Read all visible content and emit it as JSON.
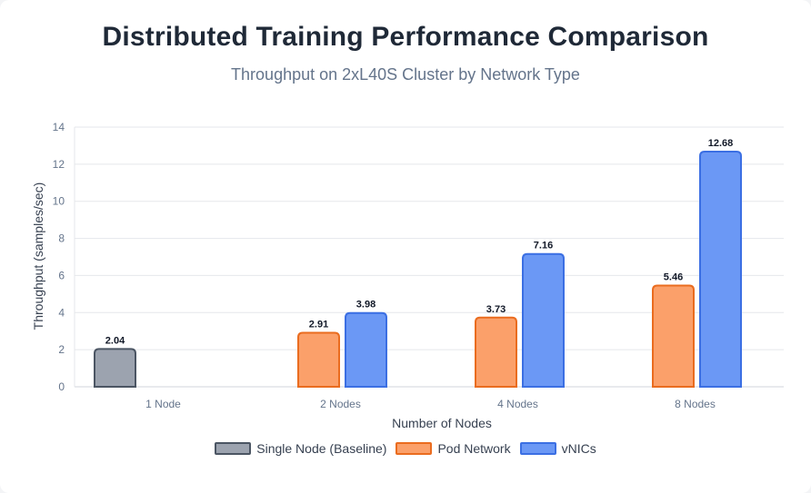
{
  "title": "Distributed Training Performance Comparison",
  "subtitle": "Throughput on 2xL40S Cluster by Network Type",
  "chart_data": {
    "type": "bar",
    "categories": [
      "1 Node",
      "2 Nodes",
      "4 Nodes",
      "8 Nodes"
    ],
    "series": [
      {
        "name": "Single Node (Baseline)",
        "values": [
          2.04,
          null,
          null,
          null
        ],
        "fill": "#9ca3af",
        "stroke": "#4b5563"
      },
      {
        "name": "Pod Network",
        "values": [
          null,
          2.91,
          3.73,
          5.46
        ],
        "fill": "#fba06a",
        "stroke": "#ea6c1f"
      },
      {
        "name": "vNICs",
        "values": [
          null,
          3.98,
          7.16,
          12.68
        ],
        "fill": "#6b98f5",
        "stroke": "#3b6fe3"
      }
    ],
    "xlabel": "Number of Nodes",
    "ylabel": "Throughput (samples/sec)",
    "ylim": [
      0,
      14
    ],
    "yticks": [
      0,
      2,
      4,
      6,
      8,
      10,
      12,
      14
    ],
    "grid": true,
    "legend_position": "bottom"
  }
}
